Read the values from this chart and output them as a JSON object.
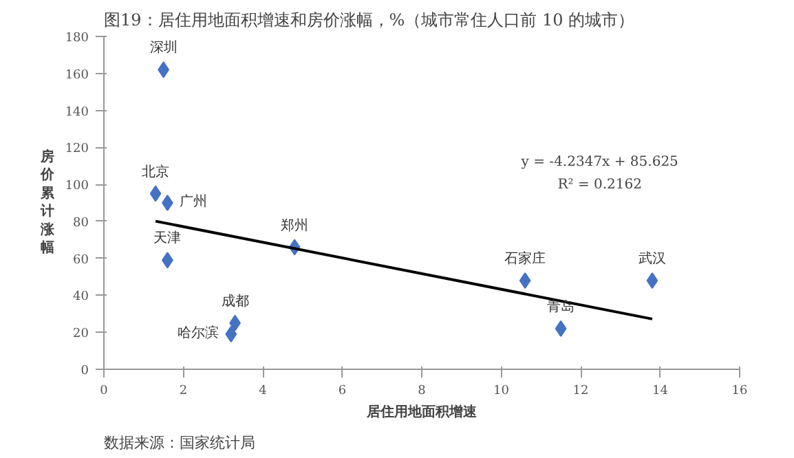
{
  "chart_data": {
    "type": "scatter",
    "title": "图19：居住用地面积增速和房价涨幅，%（城市常住人口前 10 的城市）",
    "xlabel": "居住用地面积增速",
    "ylabel": "房价累计涨幅",
    "x": [
      1.5,
      1.3,
      1.6,
      1.6,
      4.8,
      3.3,
      3.2,
      10.6,
      11.5,
      13.8
    ],
    "series": [
      {
        "color": "#4472c4",
        "marker": "diamond",
        "values": [
          162,
          95,
          90,
          59,
          66,
          25,
          19,
          48,
          22,
          48
        ]
      },
      {
        "type": "line",
        "color": "#000000",
        "x": [
          1.3,
          13.8
        ],
        "values": [
          80.1,
          27.2
        ]
      }
    ],
    "annotations": [
      {
        "text": "深圳",
        "x": 1.5,
        "y": 162
      },
      {
        "text": "北京",
        "x": 1.3,
        "y": 95
      },
      {
        "text": "广州",
        "x": 1.6,
        "y": 90
      },
      {
        "text": "天津",
        "x": 1.6,
        "y": 59
      },
      {
        "text": "郑州",
        "x": 4.8,
        "y": 66
      },
      {
        "text": "成都",
        "x": 3.3,
        "y": 25
      },
      {
        "text": "哈尔滨",
        "x": 3.2,
        "y": 19
      },
      {
        "text": "石家庄",
        "x": 10.6,
        "y": 48
      },
      {
        "text": "青岛",
        "x": 11.5,
        "y": 22
      },
      {
        "text": "武汉",
        "x": 13.8,
        "y": 48
      },
      "y = -4.2347x + 85.625",
      "R² = 0.2162",
      "数据来源：国家统计局"
    ],
    "xlim": [
      0,
      16
    ],
    "xticks": [
      0,
      2,
      4,
      6,
      8,
      10,
      12,
      14,
      16
    ],
    "ylim": [
      0,
      180
    ],
    "yticks": [
      0,
      20,
      40,
      60,
      80,
      100,
      120,
      140,
      160,
      180
    ],
    "grid": false
  }
}
